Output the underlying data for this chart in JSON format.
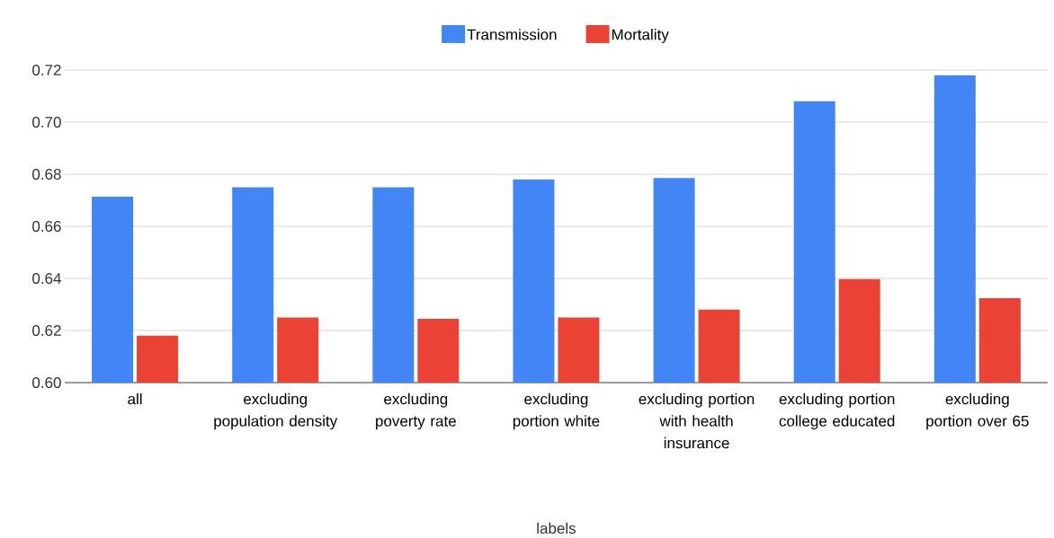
{
  "chart_data": {
    "type": "bar",
    "categories": [
      "all",
      "excluding population density",
      "excluding poverty rate",
      "excluding portion white",
      "excluding portion with health insurance",
      "excluding portion college educated",
      "excluding portion over 65"
    ],
    "series": [
      {
        "name": "Transmission",
        "color": "#4285f4",
        "values": [
          0.6714,
          0.675,
          0.675,
          0.678,
          0.6785,
          0.708,
          0.718
        ]
      },
      {
        "name": "Mortality",
        "color": "#ea4335",
        "values": [
          0.618,
          0.625,
          0.6245,
          0.625,
          0.628,
          0.6397,
          0.6324
        ]
      }
    ],
    "xlabel": "labels",
    "ylim": [
      0.6,
      0.72
    ],
    "yticks": [
      {
        "value": 0.6,
        "label": "0.60"
      },
      {
        "value": 0.62,
        "label": "0.62"
      },
      {
        "value": 0.64,
        "label": "0.64"
      },
      {
        "value": 0.66,
        "label": "0.66"
      },
      {
        "value": 0.68,
        "label": "0.68"
      },
      {
        "value": 0.7,
        "label": "0.70"
      },
      {
        "value": 0.72,
        "label": "0.72"
      }
    ],
    "grid": "y",
    "legend": "top"
  }
}
